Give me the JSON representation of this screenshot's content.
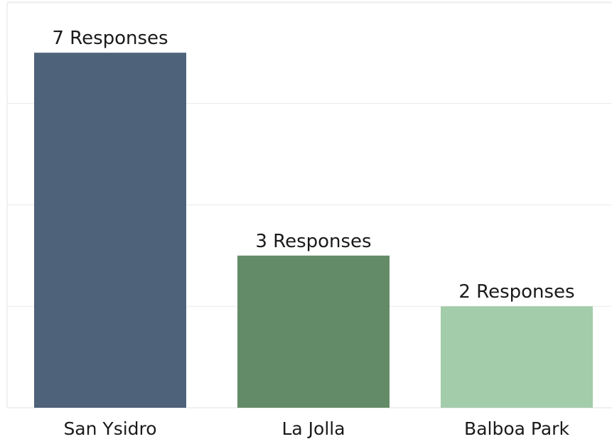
{
  "chart_data": {
    "type": "bar",
    "categories": [
      "San Ysidro",
      "La Jolla",
      "Balboa Park"
    ],
    "values": [
      7,
      3,
      2
    ],
    "data_labels": [
      "7 Responses",
      "3 Responses",
      "2 Responses"
    ],
    "colors": [
      "#4e6279",
      "#648b68",
      "#a3ccaa"
    ],
    "ylim": [
      0,
      8
    ],
    "gridlines_at": [
      2,
      4,
      6,
      8
    ],
    "grid": true,
    "title": "",
    "xlabel": "",
    "ylabel": ""
  }
}
